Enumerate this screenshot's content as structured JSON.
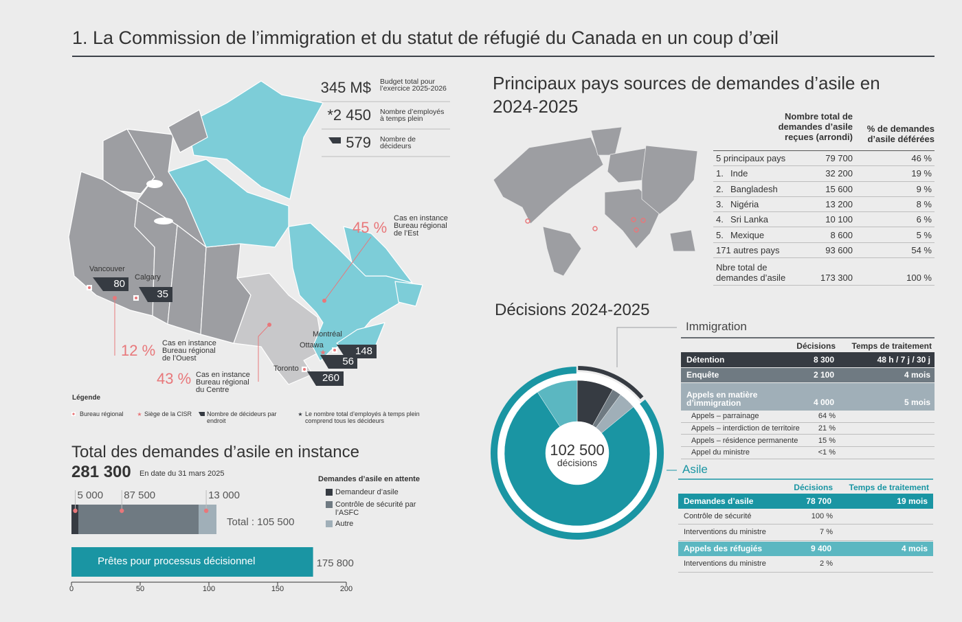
{
  "title": "1. La Commission de l’immigration et du statut de réfugié du Canada en un coup d’œil",
  "stats": [
    {
      "value": "345 M$",
      "label": [
        "Budget total pour",
        "l’exercice 2025-2026"
      ]
    },
    {
      "value": "*2 450",
      "label": [
        "Nombre d’employés",
        "à temps plein"
      ]
    },
    {
      "value": "579",
      "label": [
        "Nombre de",
        "décideurs"
      ]
    }
  ],
  "map": {
    "offices": [
      {
        "city": "Vancouver",
        "count": "80"
      },
      {
        "city": "Calgary",
        "count": "35"
      },
      {
        "city": "Montréal",
        "count": "148"
      },
      {
        "city": "Ottawa",
        "count": "56"
      },
      {
        "city": "Toronto",
        "count": "260"
      }
    ],
    "regions": [
      {
        "percent": "45 %",
        "label": [
          "Cas en instance",
          "Bureau régional",
          "de l’Est"
        ]
      },
      {
        "percent": "12 %",
        "label": [
          "Cas en instance",
          "Bureau régional",
          "de l’Ouest"
        ]
      },
      {
        "percent": "43 %",
        "label": [
          "Cas en instance",
          "Bureau régional",
          "du Centre"
        ]
      }
    ]
  },
  "legend": {
    "title": "Légende",
    "items": [
      [
        "Bureau régional"
      ],
      [
        "Siège de la CISR"
      ],
      [
        "Nombre de décideurs par",
        "endroit"
      ],
      [
        "Le nombre total d’employés à temps plein",
        "comprend tous les décideurs"
      ]
    ]
  },
  "pending": {
    "type": "bar",
    "title": "Total des demandes d’asile en instance",
    "total": "281 300",
    "date": "En date du 31 mars 2025",
    "legend_title": "Demandes d’asile en attente",
    "series": [
      {
        "name": "Demandeur d’asile",
        "color": "#363b42",
        "values": [
          5
        ],
        "value_labels": [
          "5 000"
        ]
      },
      {
        "name": "Contrôle de sécurité par l’ASFC",
        "color": "#6f7a82",
        "values": [
          87.5
        ],
        "value_labels": [
          "87 500"
        ]
      },
      {
        "name": "Autre",
        "color": "#a0afb8",
        "values": [
          13
        ],
        "value_labels": [
          "13 000"
        ]
      }
    ],
    "total_label": "Total : 105 500",
    "ready": {
      "name": "Prêtes pour processus décisionnel",
      "color": "#1a95a3",
      "values": [
        175.8
      ],
      "value_labels": [
        "175 800"
      ]
    },
    "xlim": [
      0,
      200
    ],
    "xticks": [
      0,
      50,
      100,
      150,
      200
    ]
  },
  "countries": {
    "title": [
      "Principaux pays sources de demandes d’asile en",
      "2024-2025"
    ],
    "columns": [
      "Nombre total de demandes d’asile reçues (arrondi)",
      "% de demandes d’asile déférées"
    ],
    "rows": [
      {
        "name": "5 principaux pays",
        "count": "79 700",
        "pct": "46 %"
      },
      {
        "rank": "1.",
        "name": "Inde",
        "count": "32 200",
        "pct": "19 %"
      },
      {
        "rank": "2.",
        "name": "Bangladesh",
        "count": "15 600",
        "pct": "9 %"
      },
      {
        "rank": "3.",
        "name": "Nigéria",
        "count": "13 200",
        "pct": "8 %"
      },
      {
        "rank": "4.",
        "name": "Sri Lanka",
        "count": "10 100",
        "pct": "6 %"
      },
      {
        "rank": "5.",
        "name": "Mexique",
        "count": "8 600",
        "pct": "5 %"
      },
      {
        "name": "171 autres pays",
        "count": "93 600",
        "pct": "54 %"
      },
      {
        "name": "Nbre total de demandes d’asile",
        "count": "173 300",
        "pct": "100 %"
      }
    ]
  },
  "decisions": {
    "title": "Décisions 2024-2025",
    "total": "102 500",
    "total_label": "décisions",
    "donut": {
      "type": "pie",
      "values": [
        8300,
        2100,
        4000,
        78700,
        9400
      ],
      "colors": [
        "#363b42",
        "#6f7a82",
        "#a0afb8",
        "#1a95a3",
        "#5bb7c1"
      ]
    },
    "immigration": {
      "name": "Immigration",
      "columns": [
        "Décisions",
        "Temps de traitement"
      ],
      "groups": [
        {
          "label": "Détention",
          "decisions": "8 300",
          "time": "48 h / 7 j / 30 j",
          "color": "#363b42",
          "items": []
        },
        {
          "label": "Enquête",
          "decisions": "2 100",
          "time": "4 mois",
          "color": "#6f7a82",
          "items": []
        },
        {
          "label": "Appels en matière d’immigration",
          "decisions": "4 000",
          "time": "5 mois",
          "color": "#a0afb8",
          "items": [
            {
              "label": "Appels – parrainage",
              "value": "64 %"
            },
            {
              "label": "Appels – interdiction de territoire",
              "value": "21 %"
            },
            {
              "label": "Appels – résidence permanente",
              "value": "15 %"
            },
            {
              "label": "Appel du ministre",
              "value": "<1 %"
            }
          ]
        }
      ]
    },
    "asylum": {
      "name": "Asile",
      "columns": [
        "Décisions",
        "Temps de traitement"
      ],
      "groups": [
        {
          "label": "Demandes d’asile",
          "decisions": "78 700",
          "time": "19 mois",
          "color": "#1a95a3",
          "items": [
            {
              "label": "Contrôle de sécurité",
              "value": "100 %"
            },
            {
              "label": "Interventions du ministre",
              "value": "7 %"
            }
          ]
        },
        {
          "label": "Appels des réfugiés",
          "decisions": "9 400",
          "time": "4 mois",
          "color": "#5bb7c1",
          "items": [
            {
              "label": "Interventions du ministre",
              "value": "2 %"
            }
          ]
        }
      ]
    }
  }
}
